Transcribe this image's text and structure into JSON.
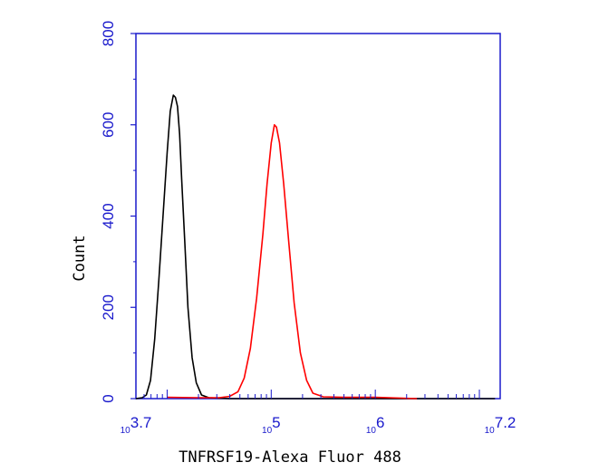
{
  "chart_data": {
    "type": "line",
    "title": "",
    "xlabel": "TNFRSF19-Alexa Fluor 488",
    "ylabel": "Count",
    "x_scale": "log10",
    "xlim_log10": [
      3.7,
      7.2
    ],
    "ylim": [
      0,
      800
    ],
    "yticks": [
      0,
      200,
      400,
      600,
      800
    ],
    "xtick_labels": [
      {
        "base": "10",
        "exp": "3.7",
        "log10": 3.7
      },
      {
        "base": "10",
        "exp": "5",
        "log10": 5
      },
      {
        "base": "10",
        "exp": "6",
        "log10": 6
      },
      {
        "base": "10",
        "exp": "7.2",
        "log10": 7.2
      }
    ],
    "grid": false,
    "legend": "none",
    "axis_color": "#1a1acc",
    "series": [
      {
        "color": "#000000",
        "x_log10": [
          3.7,
          3.76,
          3.8,
          3.84,
          3.88,
          3.92,
          3.96,
          4.0,
          4.03,
          4.06,
          4.08,
          4.1,
          4.12,
          4.14,
          4.17,
          4.2,
          4.24,
          4.28,
          4.33,
          4.4,
          4.6,
          5.0,
          5.5,
          6.0,
          6.6,
          7.15
        ],
        "y": [
          0,
          2,
          8,
          40,
          130,
          260,
          400,
          540,
          630,
          665,
          660,
          640,
          580,
          480,
          340,
          200,
          90,
          35,
          8,
          2,
          0,
          0,
          0,
          0,
          0,
          0
        ]
      },
      {
        "color": "#ff0000",
        "x_log10": [
          4.0,
          4.3,
          4.5,
          4.6,
          4.68,
          4.74,
          4.8,
          4.86,
          4.92,
          4.96,
          5.0,
          5.03,
          5.05,
          5.08,
          5.12,
          5.17,
          5.22,
          5.28,
          5.34,
          5.4,
          5.5,
          5.7,
          6.0,
          6.4
        ],
        "y": [
          3,
          2,
          2,
          5,
          15,
          45,
          110,
          220,
          360,
          470,
          560,
          600,
          595,
          560,
          470,
          340,
          210,
          100,
          40,
          12,
          4,
          3,
          3,
          0
        ]
      }
    ]
  }
}
